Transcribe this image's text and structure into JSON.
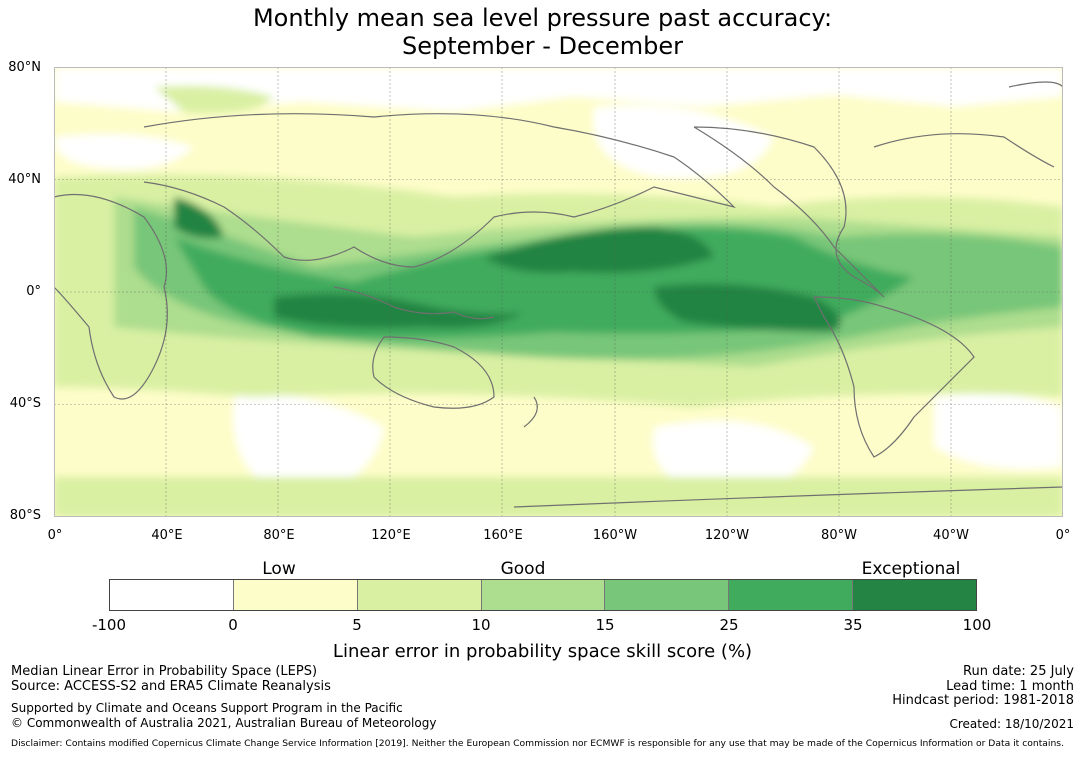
{
  "title": {
    "line1": "Monthly mean sea level pressure past accuracy:",
    "line2": "September - December"
  },
  "map": {
    "projection": "equirectangular",
    "center_longitude": "180",
    "lat_range": [
      -80,
      80
    ],
    "lat_labels": [
      "80°N",
      "40°N",
      "0°",
      "40°S",
      "80°S"
    ],
    "lon_labels": [
      "0°",
      "40°E",
      "80°E",
      "120°E",
      "160°E",
      "160°W",
      "120°W",
      "80°W",
      "40°W",
      "0°"
    ],
    "grid": true,
    "coastline_color": "#707070"
  },
  "colorbar": {
    "category_labels": [
      "Low",
      "Good",
      "Exceptional"
    ],
    "ticks": [
      "-100",
      "0",
      "5",
      "10",
      "15",
      "25",
      "35",
      "100"
    ],
    "colors": [
      "#ffffff",
      "#fdfdc9",
      "#d9f0a3",
      "#addd8e",
      "#78c679",
      "#41ab5d",
      "#238443"
    ],
    "title": "Linear error in probability space skill score (%)"
  },
  "footer": {
    "left": {
      "line1": "Median Linear Error in Probability Space (LEPS)",
      "line2": "Source: ACCESS-S2 and ERA5 Climate Reanalysis",
      "line3": "Supported by Climate and Oceans Support Program in the Pacific",
      "line4": "© Commonwealth of Australia 2021, Australian Bureau of Meteorology"
    },
    "right": {
      "run_date": "Run date: 25 July",
      "lead_time": "Lead time: 1 month",
      "hindcast": "Hindcast period: 1981-2018",
      "created": "Created: 18/10/2021"
    },
    "disclaimer": "Disclaimer: Contains modified Copernicus Climate Change Service Information [2019]. Neither the European Commission nor ECMWF is responsible for any use that may be made of the Copernicus Information or Data it contains."
  }
}
